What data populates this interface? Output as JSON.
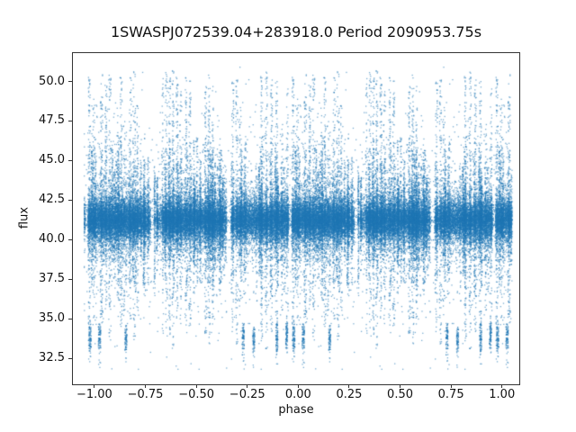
{
  "chart_data": {
    "type": "scatter",
    "title": "1SWASPJ072539.04+283918.0 Period 2090953.75s",
    "xlabel": "phase",
    "ylabel": "flux",
    "xlim": [
      -1.11,
      1.085
    ],
    "ylim": [
      30.85,
      51.85
    ],
    "xticks": [
      -1.0,
      -0.75,
      -0.5,
      -0.25,
      0.0,
      0.25,
      0.5,
      0.75,
      1.0
    ],
    "xtick_labels": [
      "−1.00",
      "−0.75",
      "−0.50",
      "−0.25",
      "0.00",
      "0.25",
      "0.50",
      "0.75",
      "1.00"
    ],
    "yticks": [
      32.5,
      35.0,
      37.5,
      40.0,
      42.5,
      45.0,
      47.5,
      50.0
    ],
    "ytick_labels": [
      "32.5",
      "35.0",
      "37.5",
      "40.0",
      "42.5",
      "45.0",
      "47.5",
      "50.0"
    ],
    "grid": false,
    "legend": null,
    "point_color": "#1f77b4",
    "point_alpha": 0.6,
    "marker_px": 1.3,
    "background": "#ffffff",
    "spine_color": "#333333",
    "description": "Folded SWASP light curve: ~70k flux measurements plotted twice (phase and phase-1, edges wrapped to ±1.05). A dense flat band at flux ≈ 40.0–42.5 spans all phases, with narrow vertical streaks of high scatter reaching flux ≈ 50.5 and down to ≈ 32, narrow phase gaps with no data, and tight low-flux clumps near flux ≈ 33.8.",
    "model": {
      "seed": 7,
      "phase_min": -1.05,
      "phase_max": 1.05,
      "edge_extend": 0.052,
      "band": {
        "n": 20000,
        "center": 41.2,
        "sigma": 0.62,
        "min": 39.3,
        "max": 43.3,
        "tail_frac": 0.2,
        "tail_sigma": 1.0
      },
      "gaps": [
        {
          "lo": 0.276,
          "hi": 0.306,
          "keep": 0.05
        },
        {
          "lo": 0.648,
          "hi": 0.67,
          "keep": 0.05
        },
        {
          "lo": 0.953,
          "hi": 0.968,
          "keep": 0.08
        }
      ],
      "sparse_zones": [
        {
          "lo": 0.252,
          "hi": 0.342,
          "keep": 0.55
        },
        {
          "lo": 0.628,
          "hi": 0.706,
          "keep": 0.6
        }
      ],
      "columns": [
        {
          "p": 0.035,
          "w": 0.012,
          "n": 300,
          "up": 50.6,
          "dn": 34.2
        },
        {
          "p": 0.057,
          "w": 0.01,
          "n": 240,
          "up": 49.8,
          "dn": 35.5
        },
        {
          "p": 0.076,
          "w": 0.012,
          "n": 280,
          "up": 50.4,
          "dn": 33.6
        },
        {
          "p": 0.115,
          "w": 0.008,
          "n": 170,
          "up": 47.5,
          "dn": 36.0
        },
        {
          "p": 0.131,
          "w": 0.01,
          "n": 240,
          "up": 50.3,
          "dn": 34.0
        },
        {
          "p": 0.146,
          "w": 0.008,
          "n": 190,
          "up": 48.2,
          "dn": 35.2
        },
        {
          "p": 0.176,
          "w": 0.01,
          "n": 250,
          "up": 50.5,
          "dn": 34.8
        },
        {
          "p": 0.196,
          "w": 0.012,
          "n": 300,
          "up": 50.7,
          "dn": 33.6
        },
        {
          "p": 0.212,
          "w": 0.008,
          "n": 190,
          "up": 48.6,
          "dn": 35.4
        },
        {
          "p": 0.247,
          "w": 0.008,
          "n": 150,
          "up": 46.8,
          "dn": 36.4
        },
        {
          "p": 0.263,
          "w": 0.006,
          "n": 110,
          "up": 45.4,
          "dn": 37.0
        },
        {
          "p": 0.336,
          "w": 0.008,
          "n": 210,
          "up": 50.2,
          "dn": 34.0
        },
        {
          "p": 0.353,
          "w": 0.01,
          "n": 260,
          "up": 50.6,
          "dn": 33.4
        },
        {
          "p": 0.369,
          "w": 0.01,
          "n": 280,
          "up": 50.4,
          "dn": 34.0
        },
        {
          "p": 0.386,
          "w": 0.01,
          "n": 300,
          "up": 50.7,
          "dn": 33.0
        },
        {
          "p": 0.406,
          "w": 0.01,
          "n": 280,
          "up": 50.3,
          "dn": 34.4
        },
        {
          "p": 0.423,
          "w": 0.008,
          "n": 230,
          "up": 49.4,
          "dn": 34.9
        },
        {
          "p": 0.449,
          "w": 0.01,
          "n": 260,
          "up": 50.5,
          "dn": 34.0
        },
        {
          "p": 0.469,
          "w": 0.01,
          "n": 260,
          "up": 50.2,
          "dn": 34.4
        },
        {
          "p": 0.488,
          "w": 0.006,
          "n": 140,
          "up": 46.4,
          "dn": 36.6
        },
        {
          "p": 0.546,
          "w": 0.01,
          "n": 260,
          "up": 50.4,
          "dn": 34.0
        },
        {
          "p": 0.563,
          "w": 0.01,
          "n": 280,
          "up": 50.7,
          "dn": 33.4
        },
        {
          "p": 0.581,
          "w": 0.008,
          "n": 210,
          "up": 48.9,
          "dn": 35.0
        },
        {
          "p": 0.619,
          "w": 0.006,
          "n": 130,
          "up": 46.0,
          "dn": 36.5
        },
        {
          "p": 0.679,
          "w": 0.01,
          "n": 260,
          "up": 50.2,
          "dn": 34.0
        },
        {
          "p": 0.699,
          "w": 0.01,
          "n": 280,
          "up": 50.6,
          "dn": 33.4
        },
        {
          "p": 0.716,
          "w": 0.008,
          "n": 210,
          "up": 48.4,
          "dn": 35.0
        },
        {
          "p": 0.742,
          "w": 0.006,
          "n": 130,
          "up": 46.2,
          "dn": 36.2
        },
        {
          "p": 0.821,
          "w": 0.01,
          "n": 280,
          "up": 50.5,
          "dn": 33.5
        },
        {
          "p": 0.844,
          "w": 0.01,
          "n": 300,
          "up": 50.7,
          "dn": 33.0
        },
        {
          "p": 0.869,
          "w": 0.01,
          "n": 280,
          "up": 50.2,
          "dn": 34.0
        },
        {
          "p": 0.894,
          "w": 0.01,
          "n": 260,
          "up": 50.4,
          "dn": 33.6
        },
        {
          "p": 0.921,
          "w": 0.008,
          "n": 180,
          "up": 47.5,
          "dn": 35.5
        },
        {
          "p": 0.947,
          "w": 0.008,
          "n": 220,
          "up": 49.6,
          "dn": 34.0
        },
        {
          "p": 0.975,
          "w": 0.01,
          "n": 260,
          "up": 50.4,
          "dn": 33.5
        },
        {
          "p": 0.997,
          "w": 0.008,
          "n": 200,
          "up": 49.0,
          "dn": 34.2
        }
      ],
      "column_core_frac": 0.45,
      "column_up_frac": 0.58,
      "column_tail_pow": 1.7,
      "bristles": {
        "count": 120,
        "w": 0.006,
        "n_range": [
          40,
          110
        ],
        "up_range": [
          43.2,
          46.6
        ],
        "dn_range": [
          36.4,
          39.4
        ]
      },
      "noise": {
        "n": 2000,
        "sigma": 3.1,
        "min": 31.8,
        "max": 50.9
      },
      "low_clusters": [
        {
          "p": 0.025,
          "c": 33.9,
          "hh": 0.75,
          "w": 0.012,
          "n": 90
        },
        {
          "p": 0.155,
          "c": 33.8,
          "hh": 0.75,
          "w": 0.01,
          "n": 80
        },
        {
          "p": 0.73,
          "c": 33.9,
          "hh": 0.8,
          "w": 0.01,
          "n": 85
        },
        {
          "p": 0.782,
          "c": 33.7,
          "hh": 0.75,
          "w": 0.01,
          "n": 80
        },
        {
          "p": 0.895,
          "c": 33.8,
          "hh": 0.85,
          "w": 0.01,
          "n": 85
        },
        {
          "p": 0.944,
          "c": 33.9,
          "hh": 0.8,
          "w": 0.01,
          "n": 85
        },
        {
          "p": 0.978,
          "c": 33.8,
          "hh": 0.85,
          "w": 0.012,
          "n": 90
        }
      ]
    }
  }
}
